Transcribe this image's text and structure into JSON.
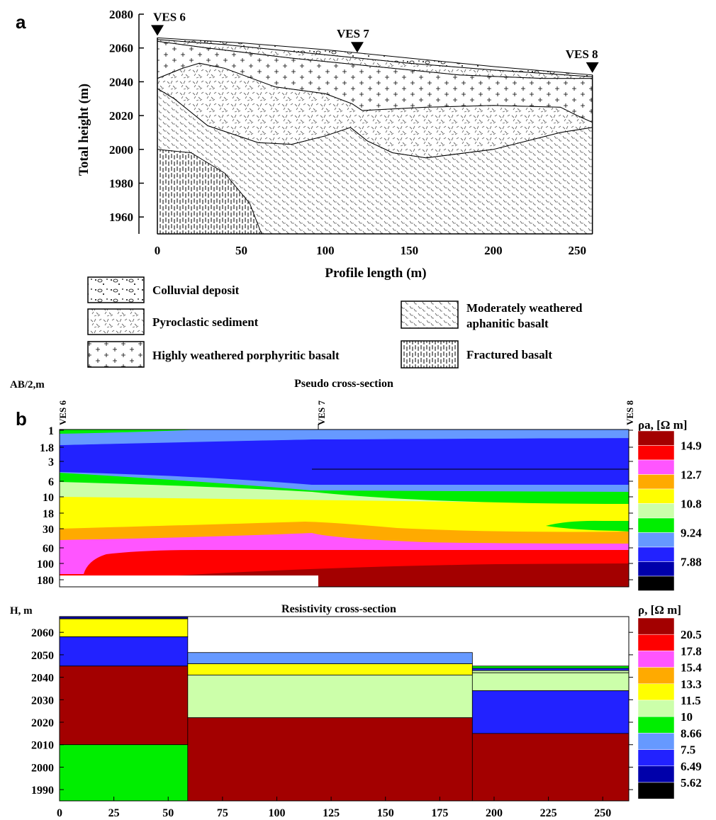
{
  "panel_a": {
    "label": "a",
    "ylabel": "Total height (m)",
    "xlabel": "Profile length (m)",
    "ves_labels": [
      "VES 6",
      "VES 7",
      "VES 8"
    ],
    "legend": [
      {
        "label": "Colluvial deposit",
        "pattern": "colluvial"
      },
      {
        "label": "Pyroclastic sediment",
        "pattern": "pyroclastic"
      },
      {
        "label": "Highly weathered porphyritic basalt",
        "pattern": "porphyritic"
      },
      {
        "label": "Moderately weathered aphanitic basalt",
        "pattern": "aphanitic"
      },
      {
        "label": "Fractured basalt",
        "pattern": "fractured"
      }
    ]
  },
  "panel_b": {
    "label": "b",
    "pseudo": {
      "title": "Pseudo cross-section",
      "ylabel": "AB/2,m",
      "ves_labels": [
        "VES 6",
        "VES 7",
        "VES 8"
      ],
      "scale_title": "ρa, [Ω m]"
    },
    "resist": {
      "title": "Resistivity cross-section",
      "ylabel": "H, m",
      "scale_title": "ρ, [Ω m]"
    }
  },
  "chart_data": [
    {
      "type": "area",
      "id": "geologic-section",
      "title": "",
      "xlabel": "Profile length (m)",
      "ylabel": "Total height (m)",
      "xlim": [
        0,
        260
      ],
      "ylim": [
        1950,
        2080
      ],
      "xticks": [
        0,
        50,
        100,
        150,
        200,
        250
      ],
      "yticks": [
        1960,
        1980,
        2000,
        2020,
        2040,
        2060,
        2080
      ],
      "ves": [
        {
          "name": "VES 6",
          "x": 0,
          "y": 2066
        },
        {
          "name": "VES 7",
          "x": 119,
          "y": 2056
        },
        {
          "name": "VES 8",
          "x": 259,
          "y": 2044
        }
      ],
      "boundaries": {
        "surface": [
          [
            0,
            2066
          ],
          [
            50,
            2063
          ],
          [
            100,
            2059
          ],
          [
            150,
            2054
          ],
          [
            200,
            2049
          ],
          [
            259,
            2044
          ]
        ],
        "colluvial_base": [
          [
            0,
            2065
          ],
          [
            40,
            2062
          ],
          [
            100,
            2056
          ],
          [
            150,
            2051
          ],
          [
            200,
            2047
          ],
          [
            259,
            2043
          ]
        ],
        "porphyritic_top": [
          [
            0,
            2064
          ],
          [
            30,
            2060
          ],
          [
            80,
            2054
          ],
          [
            130,
            2049
          ],
          [
            180,
            2044
          ],
          [
            230,
            2042
          ],
          [
            259,
            2042
          ]
        ],
        "pyroclastic_top": [
          [
            0,
            2042
          ],
          [
            15,
            2048
          ],
          [
            25,
            2051
          ],
          [
            40,
            2048
          ],
          [
            70,
            2037
          ],
          [
            100,
            2033
          ],
          [
            116,
            2027
          ],
          [
            122,
            2023
          ],
          [
            160,
            2025
          ],
          [
            200,
            2026
          ],
          [
            240,
            2025
          ],
          [
            250,
            2020
          ],
          [
            259,
            2016
          ]
        ],
        "pyroclastic_base": [
          [
            0,
            2036
          ],
          [
            10,
            2030
          ],
          [
            30,
            2014
          ],
          [
            60,
            2004
          ],
          [
            80,
            2003
          ],
          [
            100,
            2008
          ],
          [
            115,
            2013
          ],
          [
            125,
            2005
          ],
          [
            140,
            1998
          ],
          [
            160,
            1995
          ],
          [
            200,
            2000
          ],
          [
            240,
            2010
          ],
          [
            259,
            2013
          ]
        ],
        "fractured_top": [
          [
            0,
            2000
          ],
          [
            20,
            1998
          ],
          [
            40,
            1986
          ],
          [
            55,
            1968
          ],
          [
            62,
            1950
          ]
        ]
      }
    },
    {
      "type": "heatmap",
      "id": "pseudo-cross-section",
      "title": "Pseudo cross-section",
      "ylabel": "AB/2,m",
      "yticks": [
        1,
        1.8,
        3,
        6,
        10,
        18,
        30,
        60,
        100,
        180
      ],
      "x_stations": [
        "VES 6",
        "VES 7",
        "VES 8"
      ],
      "colorbar": {
        "title": "ρa, [Ω m]",
        "labels": [
          "14.9",
          "12.7",
          "10.8",
          "9.24",
          "7.88"
        ],
        "colors": [
          "#a30000",
          "#ff0000",
          "#ff55ff",
          "#ffaa00",
          "#ffff00",
          "#ccffaa",
          "#00ee00",
          "#6699ff",
          "#2222ff",
          "#0000aa",
          "#000000"
        ]
      }
    },
    {
      "type": "bar",
      "id": "resistivity-cross-section",
      "title": "Resistivity cross-section",
      "ylabel": "H, m",
      "xlim": [
        0,
        262
      ],
      "ylim": [
        1985,
        2067
      ],
      "xticks": [
        0,
        25,
        50,
        75,
        100,
        125,
        150,
        175,
        200,
        225,
        250
      ],
      "yticks": [
        1990,
        2000,
        2010,
        2020,
        2030,
        2040,
        2050,
        2060
      ],
      "colorbar": {
        "title": "ρ, [Ω m]",
        "labels": [
          "20.5",
          "17.8",
          "15.4",
          "13.3",
          "11.5",
          "10",
          "8.66",
          "7.5",
          "6.49",
          "5.62"
        ],
        "colors": [
          "#a30000",
          "#ff0000",
          "#ff55ff",
          "#ffaa00",
          "#ffff00",
          "#ccffaa",
          "#00ee00",
          "#6699ff",
          "#2222ff",
          "#0000aa",
          "#000000"
        ]
      },
      "columns": [
        {
          "x0": 0,
          "x1": 59,
          "layers": [
            {
              "top": 2067,
              "bottom": 2066,
              "color": "#0000aa"
            },
            {
              "top": 2066,
              "bottom": 2058,
              "color": "#ffff00"
            },
            {
              "top": 2058,
              "bottom": 2045,
              "color": "#2222ff"
            },
            {
              "top": 2045,
              "bottom": 2010,
              "color": "#a30000"
            },
            {
              "top": 2010,
              "bottom": 1985,
              "color": "#00ee00"
            }
          ]
        },
        {
          "x0": 59,
          "x1": 190,
          "layers": [
            {
              "top": 2051,
              "bottom": 2046,
              "color": "#6699ff"
            },
            {
              "top": 2046,
              "bottom": 2041,
              "color": "#ffff00"
            },
            {
              "top": 2041,
              "bottom": 2022,
              "color": "#ccffaa"
            },
            {
              "top": 2022,
              "bottom": 1985,
              "color": "#a30000"
            }
          ]
        },
        {
          "x0": 190,
          "x1": 262,
          "layers": [
            {
              "top": 2045,
              "bottom": 2044,
              "color": "#00ee00"
            },
            {
              "top": 2044,
              "bottom": 2043,
              "color": "#2222ff"
            },
            {
              "top": 2043,
              "bottom": 2042,
              "color": "#ccffaa"
            },
            {
              "top": 2042,
              "bottom": 2034,
              "color": "#ccffaa"
            },
            {
              "top": 2034,
              "bottom": 2015,
              "color": "#2222ff"
            },
            {
              "top": 2015,
              "bottom": 1985,
              "color": "#a30000"
            }
          ]
        }
      ]
    }
  ]
}
